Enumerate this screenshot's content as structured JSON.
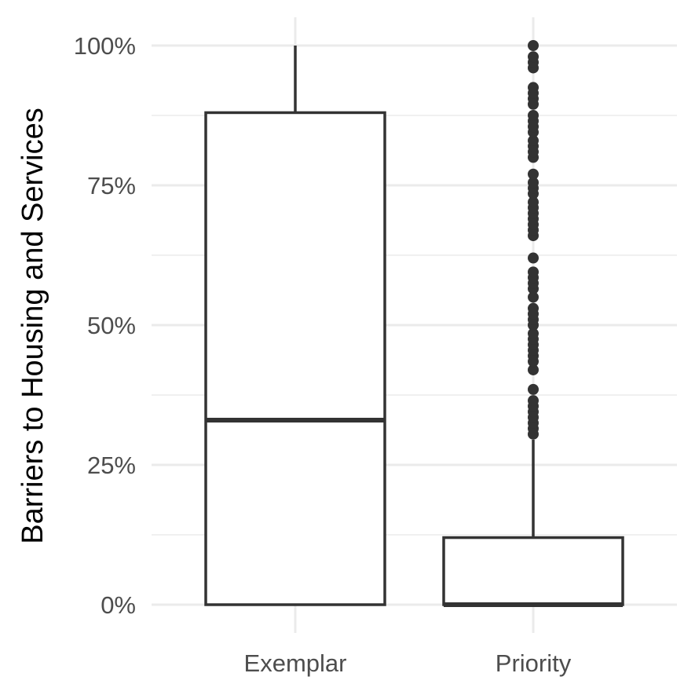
{
  "chart_data": {
    "type": "box",
    "title": "",
    "xlabel": "",
    "ylabel": "Barriers to Housing and Services",
    "ylim": [
      -0.0,
      1.0
    ],
    "y_ticks": [
      0,
      0.25,
      0.5,
      0.75,
      1.0
    ],
    "y_tick_labels": [
      "0%",
      "25%",
      "50%",
      "75%",
      "100%"
    ],
    "y_minor_ticks": [
      0.125,
      0.375,
      0.625,
      0.875
    ],
    "grid": true,
    "legend": "none",
    "categories": [
      "Exemplar",
      "Priority"
    ],
    "boxes": [
      {
        "category": "Exemplar",
        "lower_whisker": 0.0,
        "q1": 0.0,
        "median": 0.33,
        "q3": 0.88,
        "upper_whisker": 1.0,
        "outliers": []
      },
      {
        "category": "Priority",
        "lower_whisker": 0.0,
        "q1": 0.0,
        "median": 0.0,
        "q3": 0.12,
        "upper_whisker": 0.295,
        "outliers": [
          0.305,
          0.315,
          0.325,
          0.335,
          0.345,
          0.355,
          0.365,
          0.385,
          0.42,
          0.435,
          0.445,
          0.455,
          0.465,
          0.475,
          0.485,
          0.5,
          0.51,
          0.52,
          0.53,
          0.55,
          0.565,
          0.575,
          0.585,
          0.595,
          0.62,
          0.66,
          0.67,
          0.68,
          0.69,
          0.7,
          0.71,
          0.72,
          0.735,
          0.745,
          0.755,
          0.77,
          0.8,
          0.81,
          0.82,
          0.83,
          0.845,
          0.855,
          0.865,
          0.875,
          0.895,
          0.905,
          0.915,
          0.925,
          0.96,
          0.97,
          0.98,
          1.0
        ]
      }
    ],
    "colors": {
      "box_stroke": "#333333",
      "grid": "#ebebeb",
      "tick_text": "#4d4d4d"
    }
  }
}
